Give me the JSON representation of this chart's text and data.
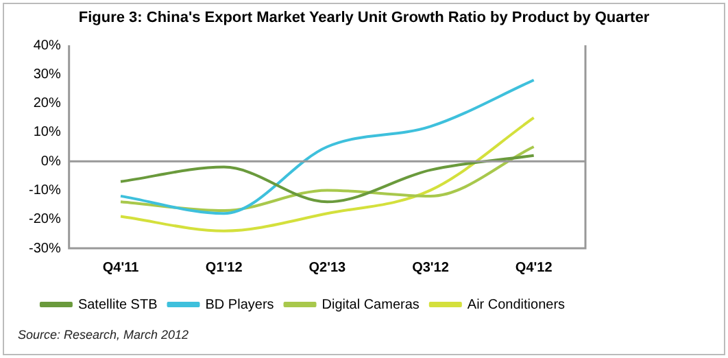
{
  "chart_data": {
    "type": "line",
    "title": "Figure 3: China's Export Market Yearly Unit Growth Ratio by Product by Quarter",
    "categories": [
      "Q4'11",
      "Q1'12",
      "Q2'13",
      "Q3'12",
      "Q4'12"
    ],
    "series": [
      {
        "name": "Satellite STB",
        "color": "#6a9a3c",
        "values": [
          -7,
          -2,
          -14,
          -3,
          2
        ]
      },
      {
        "name": "BD Players",
        "color": "#3ec0dc",
        "values": [
          -12,
          -18,
          5,
          12,
          28
        ]
      },
      {
        "name": "Digital Cameras",
        "color": "#a8c84c",
        "values": [
          -14,
          -17,
          -10,
          -12,
          5
        ]
      },
      {
        "name": "Air Conditioners",
        "color": "#d4e03c",
        "values": [
          -19,
          -24,
          -18,
          -10,
          15
        ]
      }
    ],
    "ylim": [
      -30,
      40
    ],
    "yticks": [
      {
        "value": -30,
        "label": "-30%"
      },
      {
        "value": -20,
        "label": "-20%"
      },
      {
        "value": -10,
        "label": "-10%"
      },
      {
        "value": 0,
        "label": "0%"
      },
      {
        "value": 10,
        "label": "10%"
      },
      {
        "value": 20,
        "label": "20%"
      },
      {
        "value": 30,
        "label": "30%"
      },
      {
        "value": 40,
        "label": "40%"
      }
    ],
    "grid": false,
    "ref_lines": [
      {
        "axis": "y",
        "value": 0,
        "color": "#999999"
      }
    ],
    "legend": "bottom",
    "marker": "none",
    "line_style": "solid",
    "annotations": [
      "Source: Research, March 2012"
    ]
  }
}
